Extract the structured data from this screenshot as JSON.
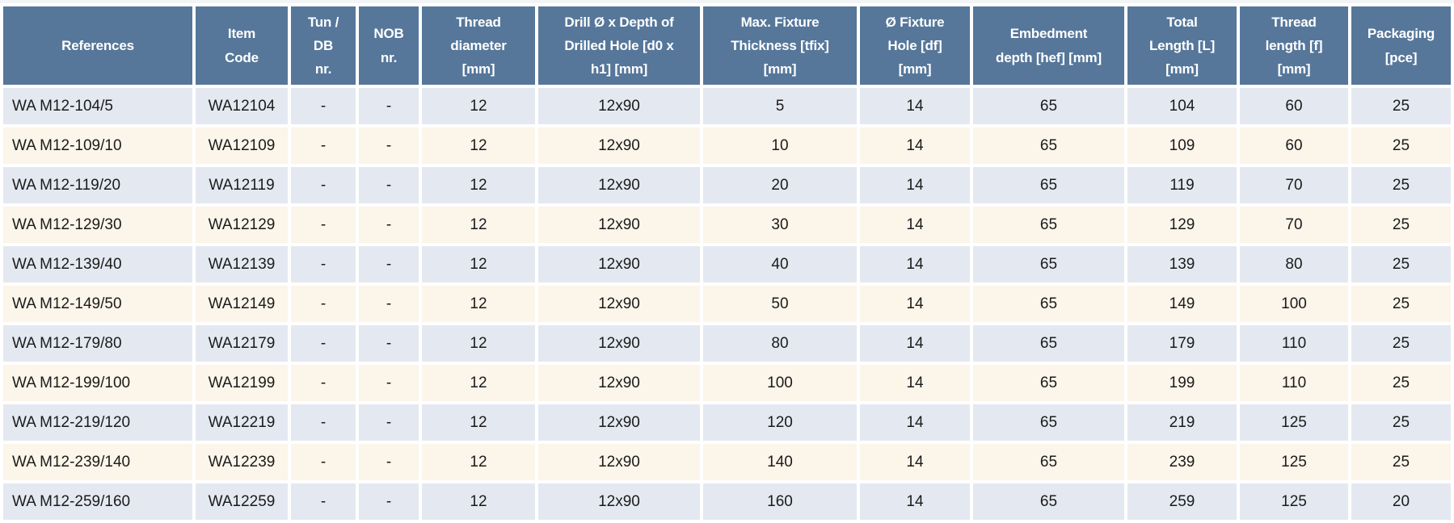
{
  "table": {
    "columns": [
      {
        "key": "references",
        "label": "References"
      },
      {
        "key": "item_code",
        "label": "Item\nCode"
      },
      {
        "key": "tun_db_nr",
        "label": "Tun /\nDB\nnr."
      },
      {
        "key": "nob_nr",
        "label": "NOB\nnr."
      },
      {
        "key": "thread_diameter",
        "label": "Thread\ndiameter\n[mm]"
      },
      {
        "key": "drill_depth",
        "label": "Drill Ø x Depth of\nDrilled Hole [d0 x\nh1] [mm]"
      },
      {
        "key": "max_fixture",
        "label": "Max. Fixture\nThickness [tfix]\n[mm]"
      },
      {
        "key": "fixture_hole",
        "label": "Ø Fixture\nHole [df]\n[mm]"
      },
      {
        "key": "embedment_depth",
        "label": "Embedment\ndepth [hef] [mm]"
      },
      {
        "key": "total_length",
        "label": "Total\nLength [L]\n[mm]"
      },
      {
        "key": "thread_length",
        "label": "Thread\nlength [f]\n[mm]"
      },
      {
        "key": "packaging",
        "label": "Packaging\n[pce]"
      }
    ],
    "rows": [
      [
        "WA M12-104/5",
        "WA12104",
        "-",
        "-",
        "12",
        "12x90",
        "5",
        "14",
        "65",
        "104",
        "60",
        "25"
      ],
      [
        "WA M12-109/10",
        "WA12109",
        "-",
        "-",
        "12",
        "12x90",
        "10",
        "14",
        "65",
        "109",
        "60",
        "25"
      ],
      [
        "WA M12-119/20",
        "WA12119",
        "-",
        "-",
        "12",
        "12x90",
        "20",
        "14",
        "65",
        "119",
        "70",
        "25"
      ],
      [
        "WA M12-129/30",
        "WA12129",
        "-",
        "-",
        "12",
        "12x90",
        "30",
        "14",
        "65",
        "129",
        "70",
        "25"
      ],
      [
        "WA M12-139/40",
        "WA12139",
        "-",
        "-",
        "12",
        "12x90",
        "40",
        "14",
        "65",
        "139",
        "80",
        "25"
      ],
      [
        "WA M12-149/50",
        "WA12149",
        "-",
        "-",
        "12",
        "12x90",
        "50",
        "14",
        "65",
        "149",
        "100",
        "25"
      ],
      [
        "WA M12-179/80",
        "WA12179",
        "-",
        "-",
        "12",
        "12x90",
        "80",
        "14",
        "65",
        "179",
        "110",
        "25"
      ],
      [
        "WA M12-199/100",
        "WA12199",
        "-",
        "-",
        "12",
        "12x90",
        "100",
        "14",
        "65",
        "199",
        "110",
        "25"
      ],
      [
        "WA M12-219/120",
        "WA12219",
        "-",
        "-",
        "12",
        "12x90",
        "120",
        "14",
        "65",
        "219",
        "125",
        "25"
      ],
      [
        "WA M12-239/140",
        "WA12239",
        "-",
        "-",
        "12",
        "12x90",
        "140",
        "14",
        "65",
        "239",
        "125",
        "25"
      ],
      [
        "WA M12-259/160",
        "WA12259",
        "-",
        "-",
        "12",
        "12x90",
        "160",
        "14",
        "65",
        "259",
        "125",
        "20"
      ]
    ],
    "colors": {
      "header_background": "#56779A",
      "header_text": "#FFFFFF",
      "row_alternate_blue": "#E4E8F1",
      "row_alternate_cream": "#FBF5EA",
      "cell_text": "#1B1B1B",
      "grid_gap": "#FFFFFF"
    }
  }
}
